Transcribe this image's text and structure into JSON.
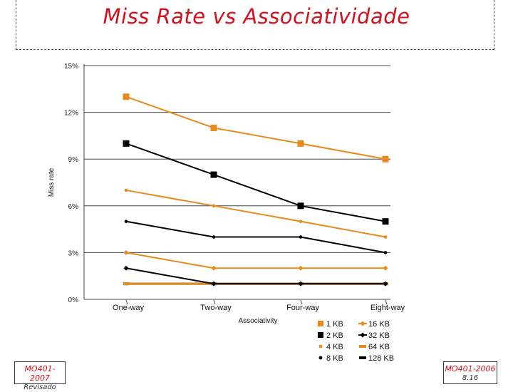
{
  "title": "Miss Rate vs Associatividade",
  "footer_left": {
    "line1": "MO401-2007",
    "line2": "Revisado"
  },
  "footer_right": {
    "line1": "MO401-2006",
    "line2": "8.16"
  },
  "colors": {
    "orange": "#e8891c",
    "black": "#000000",
    "title_red": "#d4101e"
  },
  "chart_data": {
    "type": "line",
    "title": "Miss Rate vs Associatividade",
    "xlabel": "Associativity",
    "ylabel": "Miss rate",
    "categories": [
      "One-way",
      "Two-way",
      "Four-way",
      "Eight-way"
    ],
    "ylim": [
      0,
      15
    ],
    "yticks": [
      0,
      3,
      6,
      9,
      12,
      15
    ],
    "ytick_labels": [
      "0%",
      "3%",
      "6%",
      "9%",
      "12%",
      "15%"
    ],
    "grid": true,
    "legend_position": "bottom-right",
    "series": [
      {
        "name": "1 KB",
        "color": "orange",
        "marker": "square-large",
        "values": [
          13,
          11,
          10,
          9
        ]
      },
      {
        "name": "2 KB",
        "color": "black",
        "marker": "square-large",
        "values": [
          10,
          8,
          6,
          5
        ]
      },
      {
        "name": "4 KB",
        "color": "orange",
        "marker": "dot",
        "values": [
          7,
          6,
          5,
          4
        ]
      },
      {
        "name": "8 KB",
        "color": "black",
        "marker": "dot",
        "values": [
          5,
          4,
          4,
          3
        ]
      },
      {
        "name": "16 KB",
        "color": "orange",
        "marker": "diamond",
        "values": [
          3,
          2,
          2,
          2
        ]
      },
      {
        "name": "32 KB",
        "color": "black",
        "marker": "diamond",
        "values": [
          2,
          1,
          1,
          1
        ]
      },
      {
        "name": "64 KB",
        "color": "orange",
        "marker": "dash",
        "values": [
          1,
          1,
          1,
          1
        ]
      },
      {
        "name": "128 KB",
        "color": "black",
        "marker": "dash",
        "values": [
          1,
          1,
          1,
          1
        ]
      }
    ]
  }
}
